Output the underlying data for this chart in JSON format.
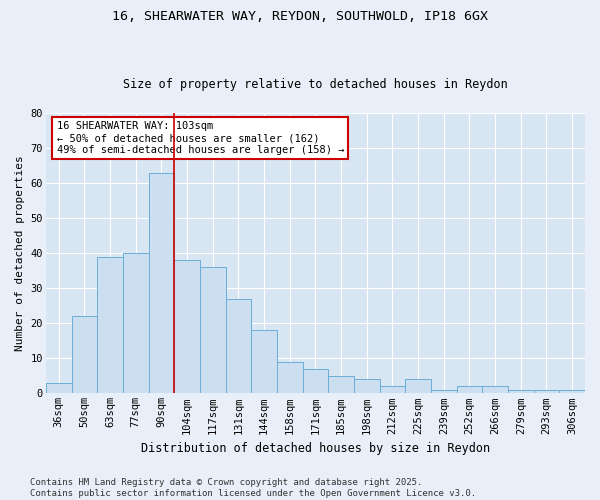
{
  "title1": "16, SHEARWATER WAY, REYDON, SOUTHWOLD, IP18 6GX",
  "title2": "Size of property relative to detached houses in Reydon",
  "xlabel": "Distribution of detached houses by size in Reydon",
  "ylabel": "Number of detached properties",
  "categories": [
    "36sqm",
    "50sqm",
    "63sqm",
    "77sqm",
    "90sqm",
    "104sqm",
    "117sqm",
    "131sqm",
    "144sqm",
    "158sqm",
    "171sqm",
    "185sqm",
    "198sqm",
    "212sqm",
    "225sqm",
    "239sqm",
    "252sqm",
    "266sqm",
    "279sqm",
    "293sqm",
    "306sqm"
  ],
  "values": [
    3,
    22,
    39,
    40,
    63,
    38,
    36,
    27,
    18,
    9,
    7,
    5,
    4,
    2,
    4,
    1,
    2,
    2,
    1,
    1,
    1
  ],
  "bar_color": "#ccdff0",
  "bar_edge_color": "#6baed6",
  "vline_x": 4.5,
  "vline_color": "#cc0000",
  "annotation_text": "16 SHEARWATER WAY: 103sqm\n← 50% of detached houses are smaller (162)\n49% of semi-detached houses are larger (158) →",
  "annotation_box_facecolor": "#ffffff",
  "annotation_box_edgecolor": "#cc0000",
  "ylim": [
    0,
    80
  ],
  "yticks": [
    0,
    10,
    20,
    30,
    40,
    50,
    60,
    70,
    80
  ],
  "footer": "Contains HM Land Registry data © Crown copyright and database right 2025.\nContains public sector information licensed under the Open Government Licence v3.0.",
  "fig_bg_color": "#e8eff8",
  "plot_bg_color": "#d8e6f3",
  "grid_color": "#ffffff",
  "title1_fontsize": 9.5,
  "title2_fontsize": 8.5,
  "ylabel_fontsize": 8,
  "xlabel_fontsize": 8.5,
  "tick_fontsize": 7.5,
  "footer_fontsize": 6.5
}
